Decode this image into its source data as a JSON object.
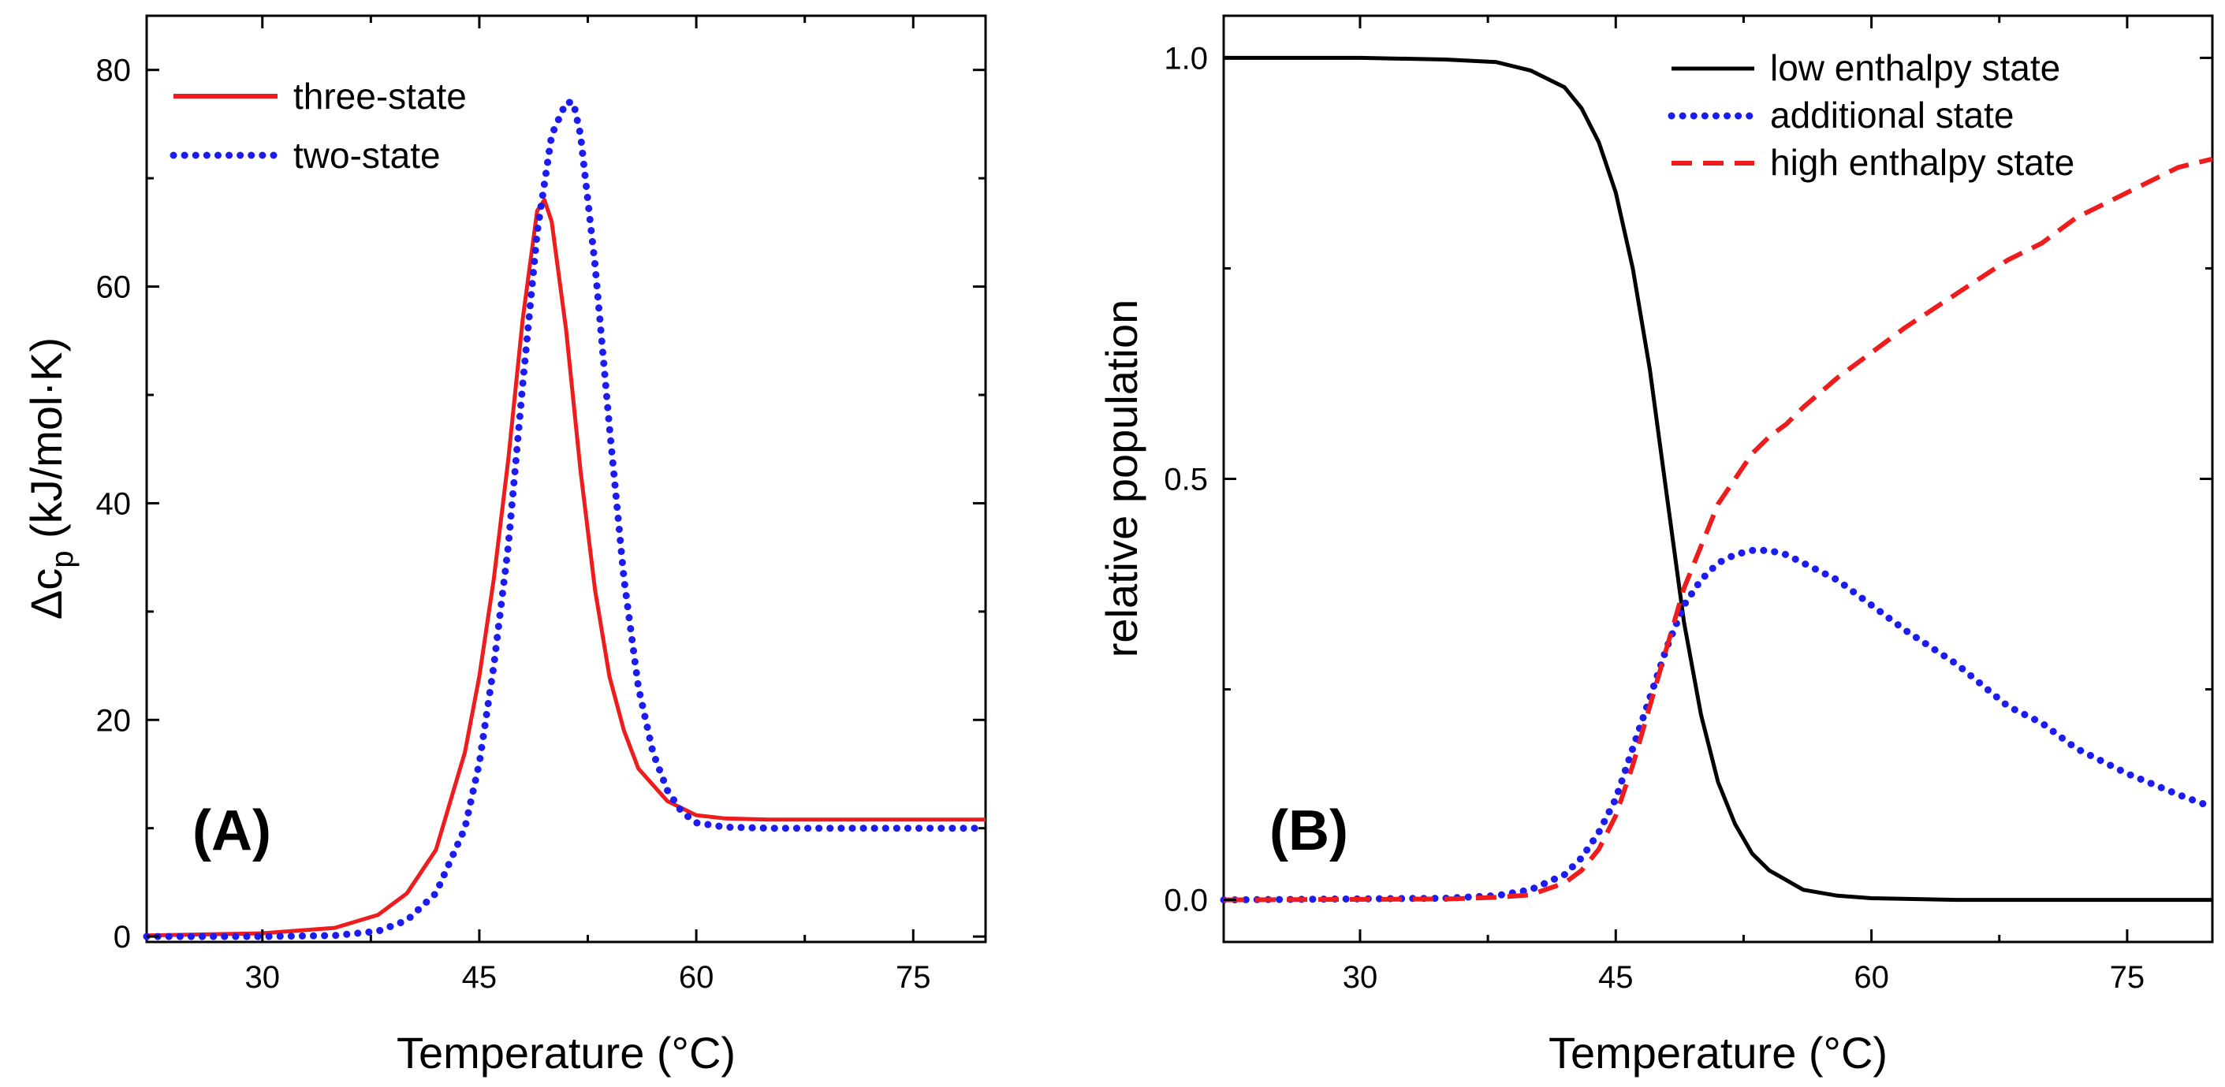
{
  "chart_data": [
    {
      "id": "A",
      "type": "line",
      "panel_label": "(A)",
      "xlabel": "Temperature (°C)",
      "ylabel_prefix": "Δc",
      "ylabel_sub": "p",
      "ylabel_suffix": " (kJ/mol·K)",
      "xlim": [
        22,
        80
      ],
      "ylim": [
        -0.5,
        85
      ],
      "xticks": [
        30,
        45,
        60,
        75
      ],
      "xtick_labels": [
        "30",
        "45",
        "60",
        "75"
      ],
      "yticks": [
        0,
        20,
        40,
        60,
        80
      ],
      "ytick_labels": [
        "0",
        "20",
        "40",
        "60",
        "80"
      ],
      "legend_position": "top-left",
      "series": [
        {
          "name": "three-state",
          "color": "#ee1c1c",
          "style": "solid",
          "x": [
            22,
            30,
            35,
            38,
            40,
            42,
            44,
            45,
            46,
            47,
            48,
            49,
            49.5,
            50,
            51,
            52,
            53,
            54,
            55,
            56,
            58,
            60,
            62,
            65,
            70,
            75,
            80
          ],
          "y": [
            0.1,
            0.3,
            0.8,
            2.0,
            4.0,
            8.0,
            17.0,
            24.0,
            33.0,
            44.0,
            57.0,
            67.0,
            68.0,
            66.0,
            56.0,
            43.0,
            32.0,
            24.0,
            19.0,
            15.5,
            12.5,
            11.2,
            10.9,
            10.8,
            10.8,
            10.8,
            10.8
          ]
        },
        {
          "name": "two-state",
          "color": "#1c1cf0",
          "style": "dotted",
          "x": [
            22,
            30,
            35,
            38,
            40,
            42,
            44,
            45,
            46,
            47,
            48,
            49,
            50,
            51,
            51.5,
            52,
            53,
            54,
            55,
            56,
            57,
            58,
            59,
            60,
            62,
            65,
            70,
            75,
            80
          ],
          "y": [
            0.0,
            0.0,
            0.1,
            0.5,
            1.5,
            4.0,
            10.0,
            16.0,
            25.0,
            36.0,
            51.0,
            65.0,
            74.0,
            77.0,
            77.0,
            74.0,
            62.0,
            47.0,
            33.0,
            23.0,
            17.0,
            13.5,
            11.5,
            10.5,
            10.1,
            10.0,
            10.0,
            10.0,
            10.0
          ]
        }
      ]
    },
    {
      "id": "B",
      "type": "line",
      "panel_label": "(B)",
      "xlabel": "Temperature (°C)",
      "ylabel": "relative population",
      "xlim": [
        22,
        80
      ],
      "ylim": [
        -0.05,
        1.05
      ],
      "xticks": [
        30,
        45,
        60,
        75
      ],
      "xtick_labels": [
        "30",
        "45",
        "60",
        "75"
      ],
      "yticks": [
        0.0,
        0.5,
        1.0
      ],
      "ytick_labels": [
        "0.0",
        "0.5",
        "1.0"
      ],
      "minor_yticks": [
        0.25,
        0.75
      ],
      "legend_position": "top-right",
      "series": [
        {
          "name": "low enthalpy state",
          "color": "#000000",
          "style": "solid",
          "x": [
            22,
            30,
            35,
            38,
            40,
            42,
            43,
            44,
            45,
            46,
            47,
            48,
            49,
            50,
            51,
            52,
            53,
            54,
            56,
            58,
            60,
            65,
            70,
            75,
            80
          ],
          "y": [
            1.0,
            1.0,
            0.998,
            0.995,
            0.985,
            0.965,
            0.94,
            0.9,
            0.84,
            0.75,
            0.63,
            0.48,
            0.33,
            0.22,
            0.14,
            0.09,
            0.055,
            0.035,
            0.012,
            0.005,
            0.002,
            0.0,
            0.0,
            0.0,
            0.0
          ]
        },
        {
          "name": "additional state",
          "color": "#1c1cf0",
          "style": "dotted",
          "x": [
            22,
            35,
            38,
            40,
            42,
            43,
            44,
            45,
            46,
            47,
            48,
            49,
            50,
            51,
            52,
            53,
            54,
            55,
            56,
            58,
            60,
            62,
            65,
            68,
            70,
            72,
            75,
            78,
            80
          ],
          "y": [
            0.0,
            0.002,
            0.005,
            0.012,
            0.03,
            0.05,
            0.08,
            0.12,
            0.18,
            0.24,
            0.3,
            0.35,
            0.38,
            0.4,
            0.41,
            0.415,
            0.415,
            0.41,
            0.4,
            0.38,
            0.35,
            0.32,
            0.28,
            0.23,
            0.21,
            0.18,
            0.15,
            0.125,
            0.11
          ]
        },
        {
          "name": "high enthalpy state",
          "color": "#ee1c1c",
          "style": "dashed",
          "x": [
            22,
            35,
            38,
            40,
            42,
            43,
            44,
            45,
            46,
            47,
            48,
            49,
            50,
            51,
            52,
            53,
            54,
            55,
            56,
            58,
            60,
            62,
            65,
            68,
            70,
            72,
            75,
            78,
            80
          ],
          "y": [
            0.0,
            0.001,
            0.003,
            0.006,
            0.02,
            0.035,
            0.06,
            0.1,
            0.16,
            0.23,
            0.3,
            0.37,
            0.42,
            0.47,
            0.5,
            0.53,
            0.55,
            0.565,
            0.585,
            0.62,
            0.65,
            0.68,
            0.72,
            0.76,
            0.78,
            0.81,
            0.84,
            0.87,
            0.88
          ]
        }
      ]
    }
  ]
}
